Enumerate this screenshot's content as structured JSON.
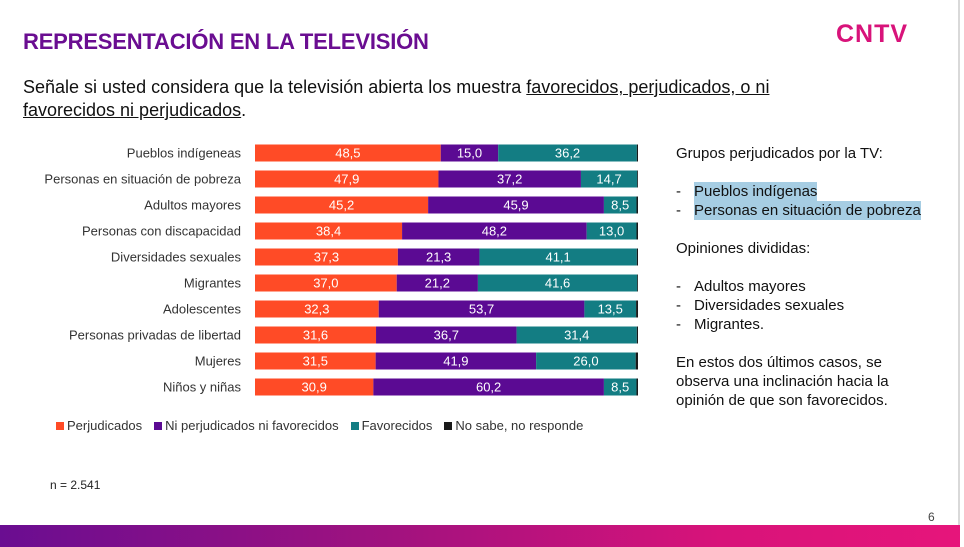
{
  "header": {
    "title": "REPRESENTACIÓN EN LA TELEVISIÓN",
    "logo_text": "CNTV"
  },
  "question": {
    "prefix": "Señale si usted considera que la televisión abierta los muestra ",
    "underlined": "favorecidos, perjudicados, o ni favorecidos ni perjudicados",
    "suffix": "."
  },
  "chart_data": {
    "type": "bar",
    "orientation": "horizontal",
    "stacked": true,
    "categories": [
      "Pueblos indígeneas",
      "Personas en situación de pobreza",
      "Adultos mayores",
      "Personas con discapacidad",
      "Diversidades sexuales",
      "Migrantes",
      "Adolescentes",
      "Personas privadas de libertad",
      "Mujeres",
      "Niños y niñas"
    ],
    "series": [
      {
        "name": "Perjudicados",
        "color": "#ff4b26",
        "values": [
          48.5,
          47.9,
          45.2,
          38.4,
          37.3,
          37.0,
          32.3,
          31.6,
          31.5,
          30.9
        ],
        "labels": [
          "48,5",
          "47,9",
          "45,2",
          "38,4",
          "37,3",
          "37,0",
          "32,3",
          "31,6",
          "31,5",
          "30,9"
        ]
      },
      {
        "name": "Ni perjudicados ni favorecidos",
        "color": "#5b0a93",
        "values": [
          15.0,
          37.2,
          45.9,
          48.2,
          21.3,
          21.2,
          53.7,
          36.7,
          41.9,
          60.2
        ],
        "labels": [
          "15,0",
          "37,2",
          "45,9",
          "48,2",
          "21,3",
          "21,2",
          "53,7",
          "36,7",
          "41,9",
          "60,2"
        ]
      },
      {
        "name": "Favorecidos",
        "color": "#137d83",
        "values": [
          36.2,
          14.7,
          8.5,
          13.0,
          41.1,
          41.6,
          13.5,
          31.4,
          26.0,
          8.5
        ],
        "labels": [
          "36,2",
          "14,7",
          "8,5",
          "13,0",
          "41,1",
          "41,6",
          "13,5",
          "31,4",
          "26,0",
          "8,5"
        ]
      },
      {
        "name": "No sabe, no responde",
        "color": "#1a1a1a",
        "values": [
          0.3,
          0.2,
          0.4,
          0.4,
          0.3,
          0.2,
          0.5,
          0.3,
          0.6,
          0.4
        ],
        "labels": [
          "",
          "",
          "",
          "",
          "",
          "",
          "",
          "",
          "",
          ""
        ]
      }
    ],
    "xlim": [
      0,
      100
    ],
    "grid": false,
    "legend_position": "bottom",
    "sample_note": "n = 2.541"
  },
  "sidebar": {
    "heading1": "Grupos perjudicados por la TV:",
    "list1": [
      "Pueblos indígenas",
      "Personas en situación  de pobreza"
    ],
    "heading2": "Opiniones divididas:",
    "list2": [
      "Adultos mayores",
      "Diversidades sexuales",
      "Migrantes."
    ],
    "conclusion": "En estos dos últimos casos, se observa una inclinación hacia la opinión de que son favorecidos."
  },
  "footer": {
    "page_number": "6"
  }
}
